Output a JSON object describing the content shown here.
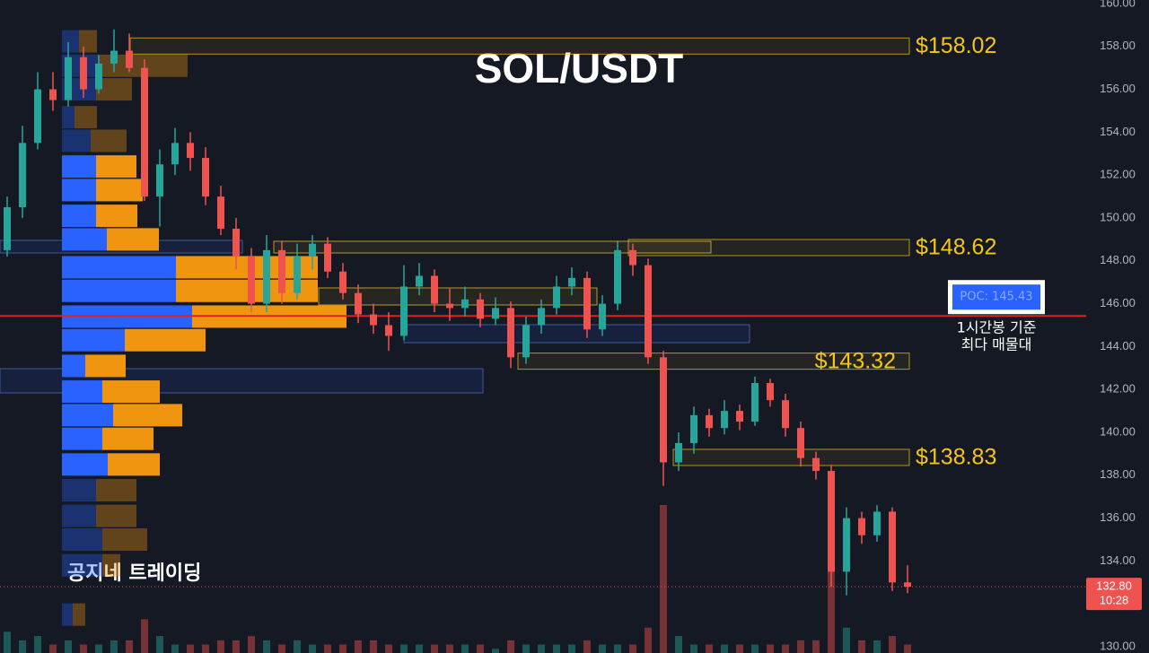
{
  "chart_data": {
    "type": "candlestick",
    "title": "SOL/USDT",
    "watermark": "공지네 트레이딩",
    "ylim": [
      130,
      160
    ],
    "yticks": [
      {
        "value": 160,
        "label": "160.00"
      },
      {
        "value": 158,
        "label": "158.00"
      },
      {
        "value": 156,
        "label": "156.00"
      },
      {
        "value": 154,
        "label": "154.00"
      },
      {
        "value": 152,
        "label": "152.00"
      },
      {
        "value": 150,
        "label": "150.00"
      },
      {
        "value": 148,
        "label": "148.00"
      },
      {
        "value": 146,
        "label": "146.00"
      },
      {
        "value": 144,
        "label": "144.00"
      },
      {
        "value": 142,
        "label": "142.00"
      },
      {
        "value": 140,
        "label": "140.00"
      },
      {
        "value": 138,
        "label": "138.00"
      },
      {
        "value": 136,
        "label": "136.00"
      },
      {
        "value": 134,
        "label": "134.00"
      },
      {
        "value": 132,
        "label": "132.00"
      },
      {
        "value": 130,
        "label": "130.00"
      }
    ],
    "grid": false,
    "up_color": "#26a69a",
    "down_color": "#ef5350",
    "candles": [
      [
        148.5,
        151,
        148.2,
        150.5
      ],
      [
        150.5,
        154.3,
        150,
        153.5
      ],
      [
        153.5,
        156.8,
        153.2,
        156
      ],
      [
        156,
        156.8,
        155,
        155.5
      ],
      [
        155.5,
        158.2,
        155.2,
        157.5
      ],
      [
        157.5,
        158,
        155.6,
        156
      ],
      [
        156,
        157.6,
        155.8,
        157.2
      ],
      [
        157.2,
        158.8,
        156.8,
        157.8
      ],
      [
        157.8,
        158.6,
        156.8,
        157
      ],
      [
        157,
        157.4,
        150.8,
        151
      ],
      [
        151,
        153.2,
        149.6,
        152.5
      ],
      [
        152.5,
        154.2,
        152,
        153.5
      ],
      [
        153.5,
        154,
        152.2,
        152.8
      ],
      [
        152.8,
        153.3,
        150.6,
        151
      ],
      [
        151,
        151.5,
        149.2,
        149.5
      ],
      [
        149.5,
        150,
        147.6,
        148.2
      ],
      [
        148.2,
        148.6,
        145.6,
        146
      ],
      [
        146,
        149.2,
        145.6,
        148.5
      ],
      [
        148.5,
        148.9,
        146,
        146.5
      ],
      [
        146.5,
        148.8,
        146.2,
        148.2
      ],
      [
        148.2,
        149.2,
        147.6,
        148.8
      ],
      [
        148.8,
        149.1,
        147.2,
        147.5
      ],
      [
        147.5,
        147.9,
        146.2,
        146.5
      ],
      [
        146.5,
        146.9,
        145.1,
        145.5
      ],
      [
        145.5,
        146,
        144.6,
        145
      ],
      [
        145,
        145.6,
        143.8,
        144.5
      ],
      [
        144.5,
        147.8,
        144.3,
        146.8
      ],
      [
        146.8,
        147.9,
        146.4,
        147.3
      ],
      [
        147.3,
        147.6,
        145.6,
        146
      ],
      [
        146,
        146.7,
        145.2,
        145.8
      ],
      [
        145.8,
        146.8,
        145.4,
        146.2
      ],
      [
        146.2,
        146.5,
        144.9,
        145.3
      ],
      [
        145.3,
        146.3,
        145,
        145.8
      ],
      [
        145.8,
        146.1,
        143,
        143.5
      ],
      [
        143.5,
        145.4,
        143.2,
        145
      ],
      [
        145,
        146.2,
        144.6,
        145.8
      ],
      [
        145.8,
        147.3,
        145.5,
        146.8
      ],
      [
        146.8,
        147.7,
        146.4,
        147.2
      ],
      [
        147.2,
        147.5,
        144.4,
        144.8
      ],
      [
        144.8,
        146.4,
        144.5,
        146
      ],
      [
        146,
        148.9,
        145.7,
        148.5
      ],
      [
        148.5,
        148.8,
        147.3,
        147.8
      ],
      [
        147.8,
        148.1,
        143.2,
        143.5
      ],
      [
        143.5,
        143.8,
        137.5,
        138.6
      ],
      [
        138.6,
        140,
        138.2,
        139.5
      ],
      [
        139.5,
        141.2,
        139,
        140.8
      ],
      [
        140.8,
        141.1,
        139.8,
        140.2
      ],
      [
        140.2,
        141.5,
        139.9,
        141
      ],
      [
        141,
        141.3,
        140.1,
        140.5
      ],
      [
        140.5,
        142.6,
        140.3,
        142.3
      ],
      [
        142.3,
        142.5,
        141.2,
        141.5
      ],
      [
        141.5,
        141.8,
        139.8,
        140.2
      ],
      [
        140.2,
        140.5,
        138.4,
        138.8
      ],
      [
        138.8,
        139.1,
        137.8,
        138.2
      ],
      [
        138.2,
        138.5,
        132.8,
        133.5
      ],
      [
        133.5,
        136.5,
        132.4,
        136
      ],
      [
        136,
        136.3,
        134.8,
        135.2
      ],
      [
        135.2,
        136.6,
        134.9,
        136.3
      ],
      [
        136.3,
        136.5,
        132.6,
        133
      ],
      [
        133,
        133.8,
        132.5,
        132.8
      ]
    ],
    "volumes": [
      5,
      3,
      4,
      2,
      3,
      2,
      2,
      3,
      3,
      8,
      4,
      2,
      2,
      2,
      3,
      3,
      4,
      3,
      2,
      3,
      2,
      2,
      2,
      3,
      3,
      2,
      2,
      2,
      2,
      2,
      2,
      2,
      1,
      3,
      2,
      2,
      2,
      2,
      3,
      2,
      2,
      2,
      6,
      35,
      4,
      2,
      2,
      2,
      2,
      2,
      2,
      2,
      3,
      3,
      35,
      6,
      3,
      3,
      4,
      2
    ],
    "volume_profile": {
      "prices": [
        158.24,
        157.1,
        156.0,
        154.7,
        153.6,
        152.4,
        151.3,
        150.1,
        149.0,
        147.7,
        146.6,
        145.4,
        144.3,
        143.1,
        141.9,
        140.8,
        139.7,
        138.5,
        137.3,
        136.1,
        135.0,
        133.8,
        131.5
      ],
      "buy": [
        19,
        40,
        38,
        14,
        32,
        38,
        38,
        38,
        50,
        127,
        127,
        145,
        70,
        26,
        45,
        57,
        45,
        51,
        38,
        38,
        45,
        45,
        12
      ],
      "sell": [
        20,
        100,
        40,
        25,
        40,
        45,
        52,
        46,
        58,
        158,
        158,
        172,
        90,
        45,
        64,
        77,
        57,
        58,
        45,
        45,
        50,
        20,
        14
      ],
      "in_value_area": [
        false,
        false,
        false,
        false,
        false,
        true,
        true,
        true,
        true,
        true,
        true,
        true,
        true,
        true,
        true,
        true,
        true,
        true,
        false,
        false,
        false,
        false,
        false
      ],
      "buy_color": "#2962ff",
      "sell_color": "#f0950f"
    },
    "levels": [
      {
        "value": 158.02,
        "label": "$158.02"
      },
      {
        "value": 148.62,
        "label": "$148.62"
      },
      {
        "value": 143.32,
        "label": "$143.32"
      },
      {
        "value": 138.83,
        "label": "$138.83"
      }
    ],
    "level_color": "#f5c518",
    "poc": {
      "value": 145.43,
      "label": "POC: 145.43",
      "color": "#e0201f"
    },
    "poc_note": [
      "1시간봉 기준",
      "최다 매물대"
    ],
    "last_price": {
      "value": 132.8,
      "label": "132.80"
    },
    "countdown": "10:28"
  }
}
